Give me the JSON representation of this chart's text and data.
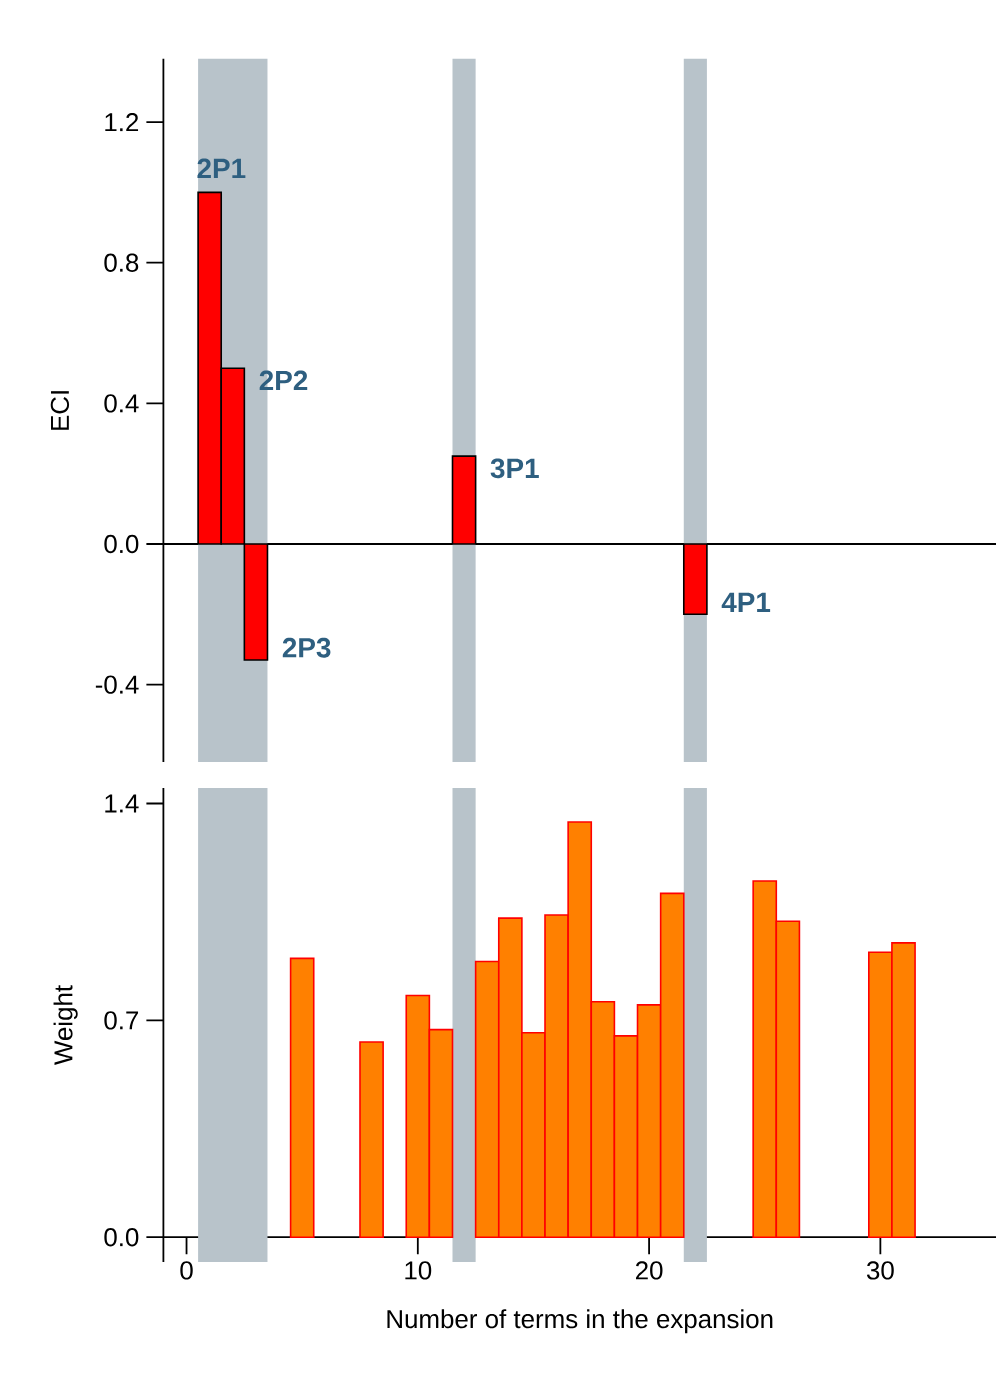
{
  "chart_data": [
    {
      "type": "bar",
      "ylabel": "ECI",
      "x": [
        1,
        2,
        3,
        12,
        22
      ],
      "series": [
        {
          "color": "#ff0000",
          "values": [
            1.0,
            0.5,
            -0.33,
            0.25,
            -0.2
          ]
        }
      ],
      "xlim": [
        -1,
        35
      ],
      "ylim": [
        -0.62,
        1.38
      ],
      "yticks": [
        -0.4,
        {
          "value": 0,
          "label": "0.0"
        },
        0.4,
        0.8,
        1.2
      ],
      "tick_labels": "y",
      "bands": [
        {
          "axis": "x",
          "from": 0.5,
          "to": 3.5,
          "color": "#b8c3ca"
        },
        {
          "axis": "x",
          "from": 11.5,
          "to": 12.5,
          "color": "#b8c3ca"
        },
        {
          "axis": "x",
          "from": 21.5,
          "to": 22.5,
          "color": "#b8c3ca"
        }
      ],
      "annotations": [
        {
          "text": "2P1",
          "x": 1,
          "y": 1.0
        },
        {
          "text": "2P2",
          "x": 2,
          "y": 0.5
        },
        {
          "text": "2P3",
          "x": 3,
          "y": -0.33
        },
        {
          "text": "3P1",
          "x": 12,
          "y": 0.25
        },
        {
          "text": "4P1",
          "x": 22,
          "y": -0.2
        }
      ]
    },
    {
      "type": "bar",
      "ylabel": "Weight",
      "xlabel": "Number of terms in the expansion",
      "x": [
        5,
        8,
        10,
        11,
        13,
        14,
        15,
        16,
        17,
        18,
        19,
        20,
        21,
        25,
        26,
        30,
        31
      ],
      "series": [
        {
          "color": "#ff8000",
          "values": [
            0.9,
            0.63,
            0.78,
            0.67,
            0.89,
            1.03,
            0.66,
            1.04,
            1.34,
            0.76,
            0.65,
            0.75,
            1.11,
            1.15,
            1.02,
            0.92,
            0.95
          ]
        }
      ],
      "xlim": [
        -1,
        35
      ],
      "ylim": [
        -0.08,
        1.45
      ],
      "xticks": [
        0,
        10,
        20,
        30
      ],
      "yticks": [
        {
          "value": 0,
          "label": "0.0"
        },
        0.7,
        1.4
      ],
      "bands": [
        {
          "axis": "x",
          "from": 0.5,
          "to": 3.5,
          "color": "#b8c3ca"
        },
        {
          "axis": "x",
          "from": 11.5,
          "to": 12.5,
          "color": "#b8c3ca"
        },
        {
          "axis": "x",
          "from": 21.5,
          "to": 22.5,
          "color": "#b8c3ca"
        }
      ]
    }
  ]
}
